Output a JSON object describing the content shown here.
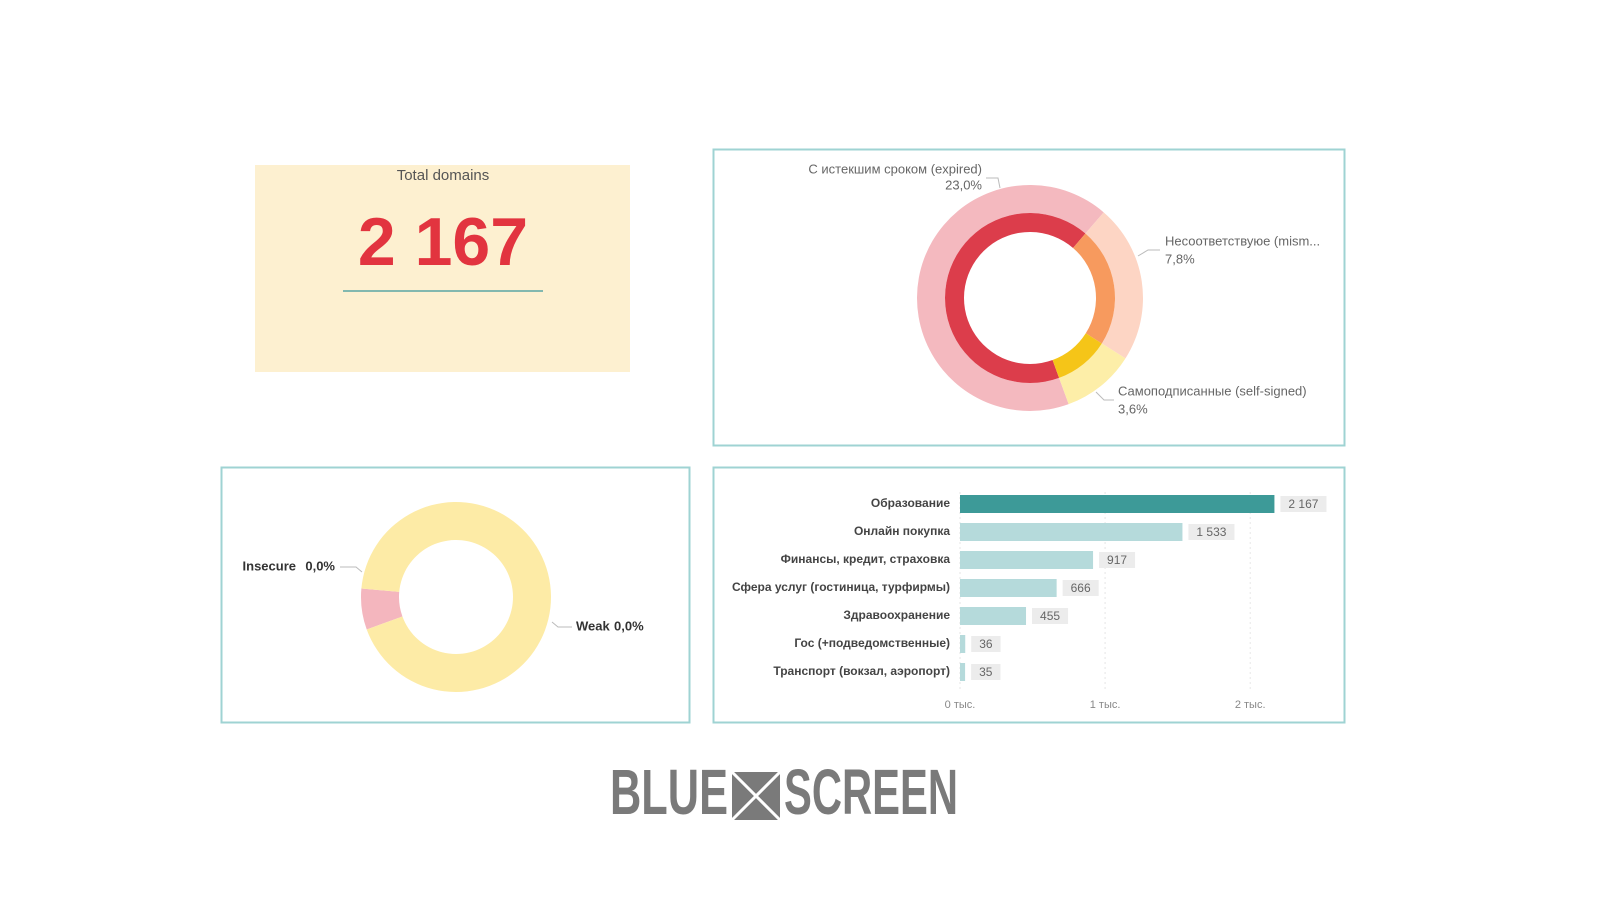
{
  "kpi": {
    "title": "Total domains",
    "value": "2 167"
  },
  "chart_data": [
    {
      "type": "donut",
      "categories": [
        "С истекшим сроком (expired)",
        "Несоответствуюе (mism...",
        "Самоподписанные (self-signed)"
      ],
      "values": [
        23.0,
        7.8,
        3.6
      ],
      "value_labels": [
        "23,0%",
        "7,8%",
        "3,6%"
      ],
      "colors": [
        "#f4b9bf",
        "#fdd5c4",
        "#fdeea8"
      ],
      "inner_colors": [
        "#dc3d4b",
        "#f79a5e",
        "#f5c518"
      ]
    },
    {
      "type": "donut",
      "categories": [
        "Insecure",
        "Weak"
      ],
      "values": [
        0.003,
        0.04
      ],
      "value_labels": [
        "0,0%",
        "0,0%"
      ],
      "colors": [
        "#f4b6be",
        "#fdeba6"
      ]
    },
    {
      "type": "bar",
      "orientation": "horizontal",
      "categories": [
        "Образование",
        "Онлайн покупка",
        "Финансы, кредит, страховка",
        "Сфера услуг (гостиница, турфирмы)",
        "Здравоохранение",
        "Гос (+подведомственные)",
        "Транспорт (вокзал, аэропорт)"
      ],
      "values": [
        2167,
        1533,
        917,
        666,
        455,
        36,
        35
      ],
      "value_labels": [
        "2 167",
        "1 533",
        "917",
        "666",
        "455",
        "36",
        "35"
      ],
      "colors": [
        "#3d9a98",
        "#b5dadb",
        "#b5dadb",
        "#b5dadb",
        "#b5dadb",
        "#b5dadb",
        "#b5dadb"
      ],
      "xlim": [
        0,
        2550
      ],
      "xticks": [
        {
          "value": 0,
          "label": "0 тыс."
        },
        {
          "value": 1000,
          "label": "1 тыс."
        },
        {
          "value": 2000,
          "label": "2 тыс."
        }
      ],
      "grid": true
    }
  ],
  "logo": {
    "left": "BLUE",
    "right": "SCREEN"
  }
}
